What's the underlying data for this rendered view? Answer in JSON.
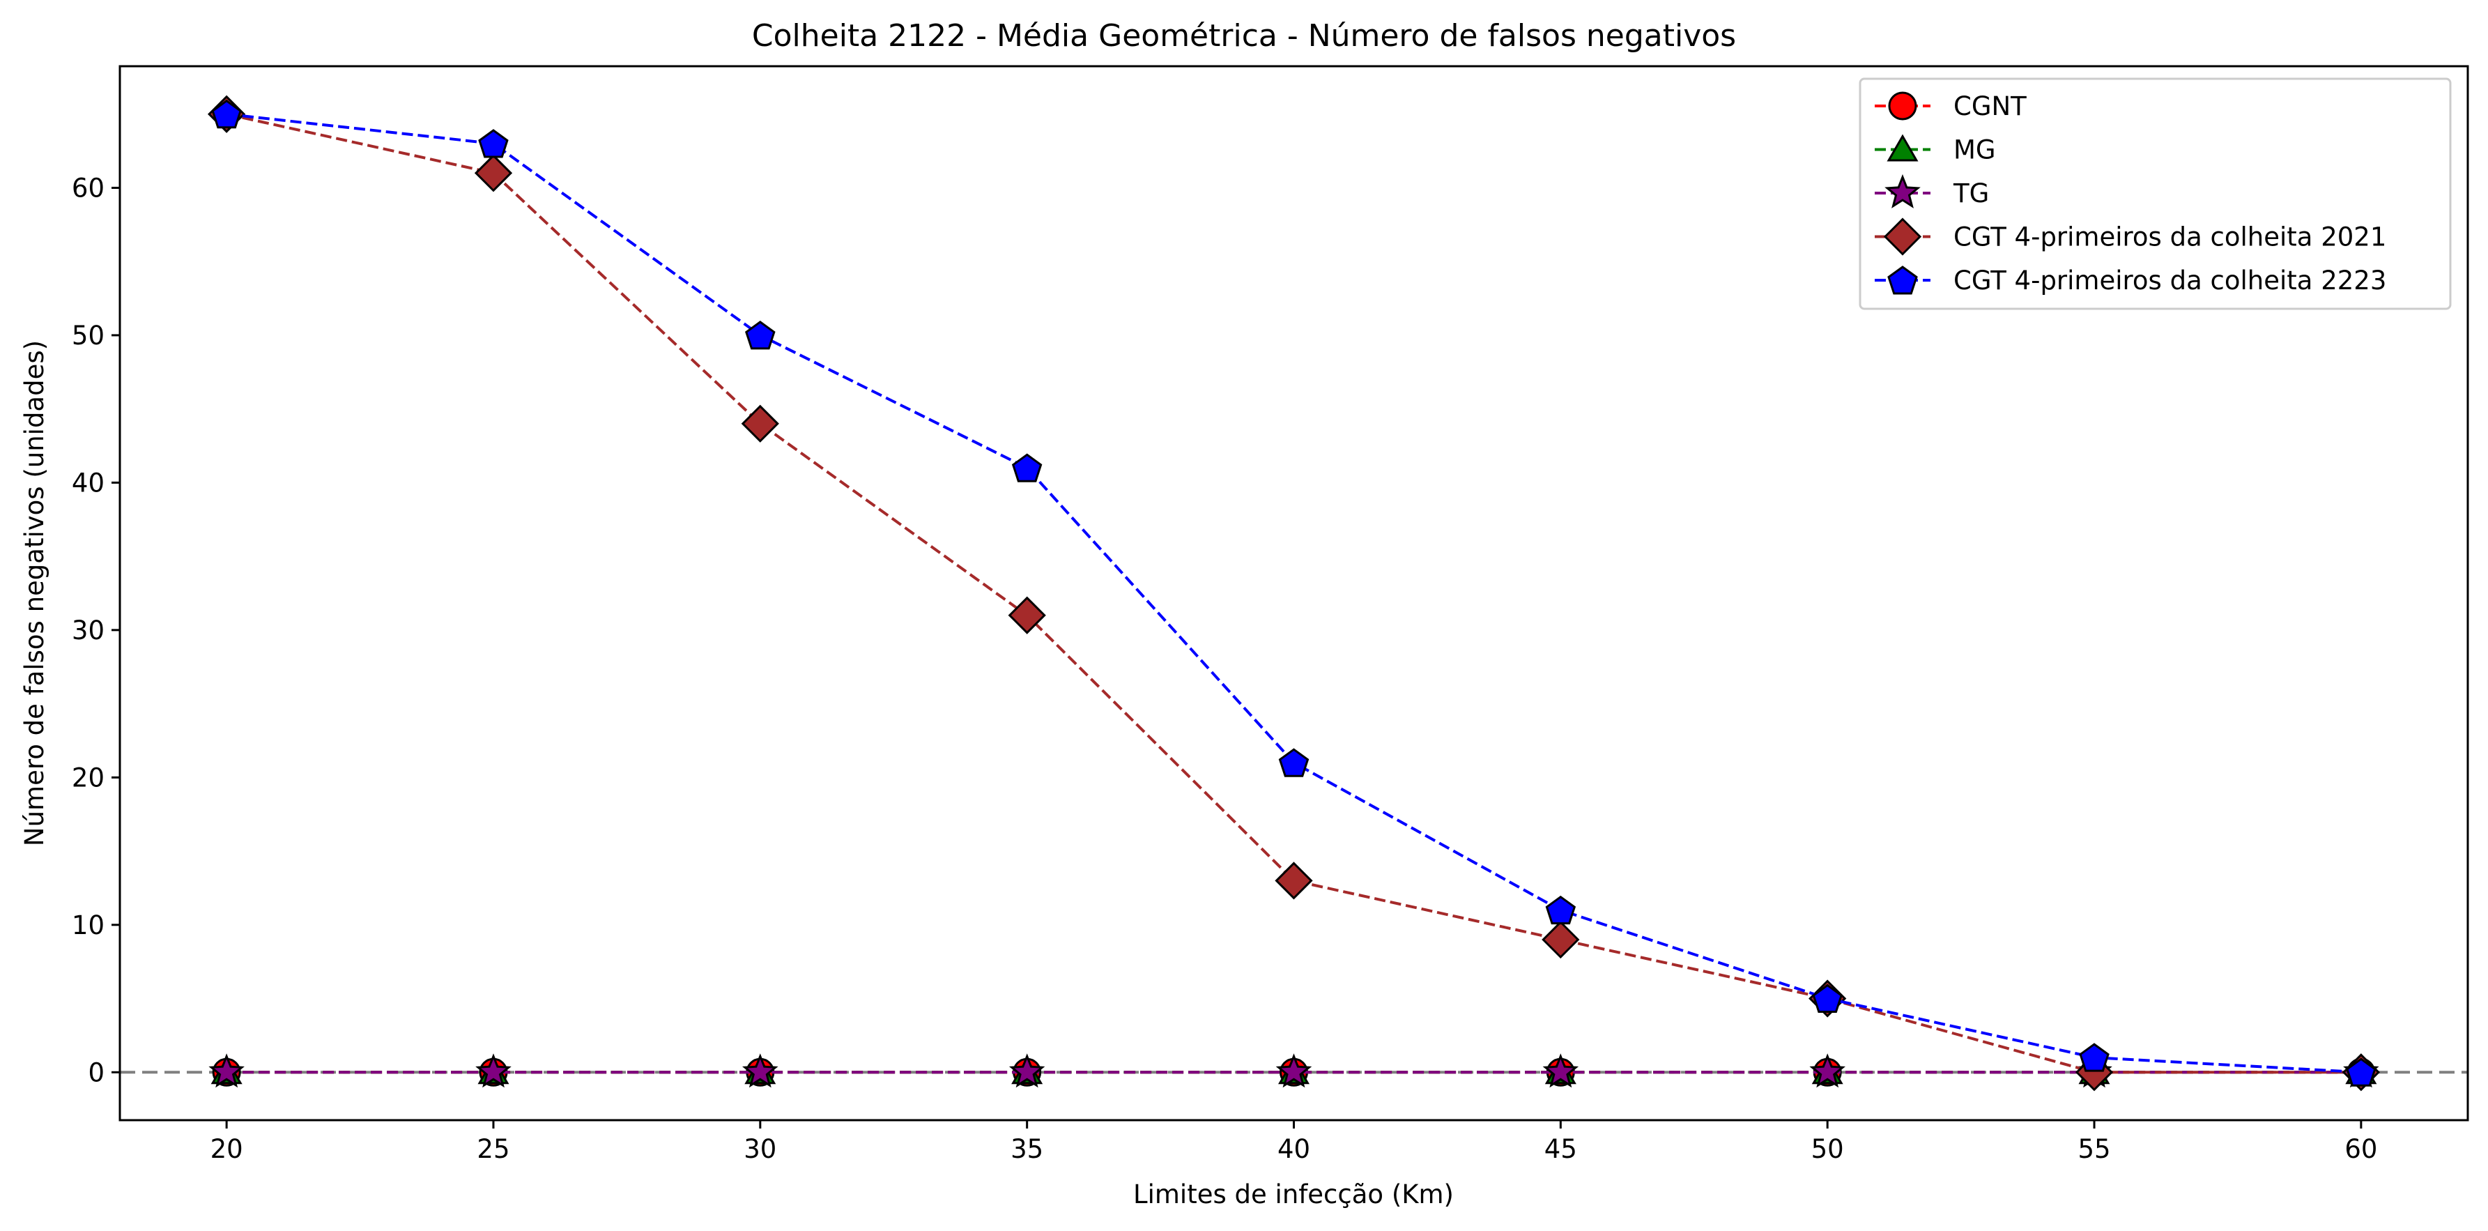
{
  "chart_data": {
    "type": "line",
    "title": "Colheita 2122 - Média Geométrica - Número de falsos negativos",
    "xlabel": "Limites de infecção (Km)",
    "ylabel": "Número de falsos negativos (unidades)",
    "x": [
      20,
      25,
      30,
      35,
      40,
      45,
      50,
      55,
      60
    ],
    "x_ticks": [
      20,
      25,
      30,
      35,
      40,
      45,
      50,
      55,
      60
    ],
    "y_ticks": [
      0,
      10,
      20,
      30,
      40,
      50,
      60
    ],
    "xlim": [
      18,
      62
    ],
    "ylim": [
      -3.25,
      68.25
    ],
    "grid": false,
    "legend_position": "top-right",
    "reference_line": {
      "y": 0,
      "color": "#808080",
      "style": "dashed"
    },
    "series": [
      {
        "name": "CGNT",
        "color": "#ff0000",
        "marker": "circle",
        "values": [
          0,
          0,
          0,
          0,
          0,
          0,
          0,
          0,
          0
        ]
      },
      {
        "name": "MG",
        "color": "#008000",
        "marker": "triangle",
        "values": [
          0,
          0,
          0,
          0,
          0,
          0,
          0,
          0,
          0
        ]
      },
      {
        "name": "TG",
        "color": "#800080",
        "marker": "star",
        "values": [
          0,
          0,
          0,
          0,
          0,
          0,
          0,
          0,
          0
        ]
      },
      {
        "name": "CGT 4-primeiros da colheita 2021",
        "color": "#a52a2a",
        "marker": "diamond",
        "values": [
          65,
          61,
          44,
          31,
          13,
          9,
          5,
          0,
          0
        ]
      },
      {
        "name": "CGT 4-primeiros da colheita 2223",
        "color": "#0000ff",
        "marker": "pentagon",
        "values": [
          65,
          63,
          50,
          41,
          21,
          11,
          5,
          1,
          0
        ]
      }
    ]
  }
}
